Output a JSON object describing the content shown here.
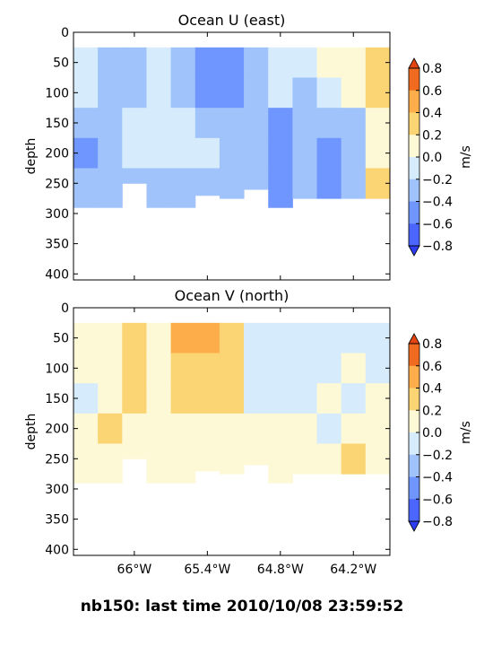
{
  "suptitle": "nb150: last time 2010/10/08 23:59:52",
  "chart_data": [
    {
      "type": "heatmap",
      "title": "Ocean U (east)",
      "ylabel": "depth",
      "colorbar_label": "m/s",
      "x_range_deg_west": [
        66.5,
        63.9
      ],
      "x_ticks": [
        {
          "value": -66.0,
          "label": "66°W"
        },
        {
          "value": -65.4,
          "label": "65.4°W"
        },
        {
          "value": -64.8,
          "label": "64.8°W"
        },
        {
          "value": -64.2,
          "label": "64.2°W"
        }
      ],
      "xtick_labels_visible": false,
      "ylim": [
        410,
        0
      ],
      "y_ticks": [
        0,
        50,
        100,
        150,
        200,
        250,
        300,
        350,
        400
      ],
      "levels": [
        -0.8,
        -0.6,
        -0.4,
        -0.2,
        0.0,
        0.2,
        0.4,
        0.6,
        0.8
      ],
      "colorbar_ticks": [
        "0.8",
        "0.6",
        "0.4",
        "0.2",
        "0.0",
        "−0.2",
        "−0.4",
        "−0.6",
        "−0.8"
      ],
      "level_colors": [
        "#4b65ff",
        "#6f96ff",
        "#9fc3fa",
        "#d6ecfc",
        "#fdf8d6",
        "#fbd474",
        "#fdae4a",
        "#f06a1f"
      ],
      "data_top_depth": 25,
      "cells_columns_x_deg": [
        -66.5,
        -66.3,
        -66.1,
        -65.9,
        -65.7,
        -65.5,
        -65.3,
        -65.1,
        -64.9,
        -64.7,
        -64.5,
        -64.3,
        -64.1,
        -63.9
      ],
      "cells_rows_depth": [
        25,
        75,
        125,
        175,
        225,
        275
      ],
      "values": [
        [
          -0.1,
          -0.3,
          -0.3,
          -0.1,
          -0.3,
          -0.6,
          -0.5,
          -0.3,
          -0.1,
          -0.1,
          0.0,
          0.1,
          0.3
        ],
        [
          -0.1,
          -0.3,
          -0.3,
          -0.2,
          -0.3,
          -0.6,
          -0.5,
          -0.3,
          -0.2,
          -0.3,
          -0.1,
          0.0,
          0.2
        ],
        [
          -0.3,
          -0.3,
          -0.2,
          -0.1,
          -0.2,
          -0.3,
          -0.3,
          -0.3,
          -0.5,
          -0.3,
          -0.4,
          -0.3,
          0.1
        ],
        [
          -0.5,
          -0.3,
          -0.2,
          -0.1,
          -0.2,
          -0.2,
          -0.3,
          -0.3,
          -0.6,
          -0.3,
          -0.6,
          -0.3,
          0.1
        ],
        [
          -0.3,
          -0.3,
          -0.3,
          -0.3,
          -0.3,
          -0.3,
          -0.3,
          -0.3,
          -0.5,
          -0.3,
          -0.5,
          -0.3,
          0.3
        ]
      ],
      "bottom_depth": [
        290,
        290,
        250,
        290,
        290,
        270,
        275,
        260,
        290,
        275,
        275,
        275,
        275
      ]
    },
    {
      "type": "heatmap",
      "title": "Ocean V (north)",
      "ylabel": "depth",
      "colorbar_label": "m/s",
      "x_range_deg_west": [
        66.5,
        63.9
      ],
      "x_ticks": [
        {
          "value": -66.0,
          "label": "66°W"
        },
        {
          "value": -65.4,
          "label": "65.4°W"
        },
        {
          "value": -64.8,
          "label": "64.8°W"
        },
        {
          "value": -64.2,
          "label": "64.2°W"
        }
      ],
      "xtick_labels_visible": true,
      "ylim": [
        410,
        0
      ],
      "y_ticks": [
        0,
        50,
        100,
        150,
        200,
        250,
        300,
        350,
        400
      ],
      "levels": [
        -0.8,
        -0.6,
        -0.4,
        -0.2,
        0.0,
        0.2,
        0.4,
        0.6,
        0.8
      ],
      "colorbar_ticks": [
        "0.8",
        "0.6",
        "0.4",
        "0.2",
        "0.0",
        "−0.2",
        "−0.4",
        "−0.6",
        "−0.8"
      ],
      "level_colors": [
        "#4b65ff",
        "#6f96ff",
        "#9fc3fa",
        "#d6ecfc",
        "#fdf8d6",
        "#fbd474",
        "#fdae4a",
        "#f06a1f"
      ],
      "data_top_depth": 25,
      "cells_columns_x_deg": [
        -66.5,
        -66.3,
        -66.1,
        -65.9,
        -65.7,
        -65.5,
        -65.3,
        -65.1,
        -64.9,
        -64.7,
        -64.5,
        -64.3,
        -64.1,
        -63.9
      ],
      "cells_rows_depth": [
        25,
        75,
        125,
        175,
        225,
        275
      ],
      "values": [
        [
          0.1,
          0.1,
          0.3,
          0.1,
          0.5,
          0.5,
          0.3,
          -0.1,
          -0.2,
          -0.2,
          -0.1,
          -0.1,
          -0.1
        ],
        [
          0.1,
          0.1,
          0.3,
          0.1,
          0.3,
          0.3,
          0.3,
          -0.1,
          -0.1,
          -0.1,
          -0.1,
          0.1,
          -0.1
        ],
        [
          -0.1,
          0.1,
          0.3,
          0.1,
          0.3,
          0.3,
          0.3,
          -0.1,
          -0.1,
          -0.1,
          0.1,
          -0.1,
          0.1
        ],
        [
          0.1,
          0.3,
          0.1,
          0.1,
          0.1,
          0.1,
          0.1,
          0.1,
          0.1,
          0.1,
          -0.1,
          0.1,
          0.1
        ],
        [
          0.1,
          0.1,
          0.1,
          0.1,
          0.1,
          0.1,
          0.1,
          0.1,
          0.1,
          0.1,
          0.1,
          0.3,
          0.1
        ]
      ],
      "bottom_depth": [
        290,
        290,
        250,
        290,
        290,
        270,
        275,
        260,
        290,
        275,
        275,
        275,
        275
      ]
    }
  ]
}
